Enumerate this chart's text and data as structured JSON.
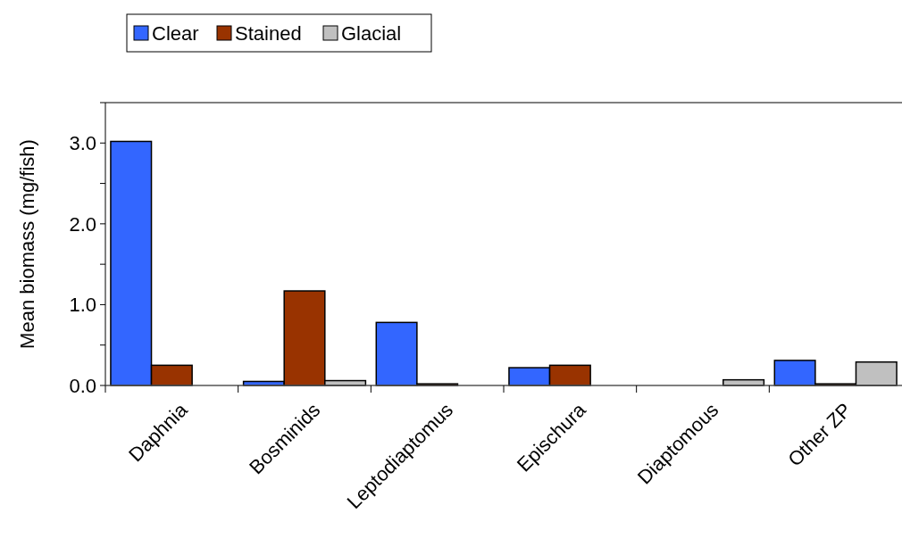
{
  "chart_data": {
    "type": "bar",
    "ylabel": "Mean biomass  (mg/fish)",
    "categories": [
      "Daphnia",
      "Bosminids",
      "Leptodiaptomus",
      "Epischura",
      "Diaptomous",
      "Other ZP"
    ],
    "series": [
      {
        "name": "Clear",
        "color": "#3366ff",
        "values": [
          3.02,
          0.05,
          0.78,
          0.22,
          0,
          0.31
        ]
      },
      {
        "name": "Stained",
        "color": "#993300",
        "values": [
          0.25,
          1.17,
          0.02,
          0.25,
          0,
          0.02
        ]
      },
      {
        "name": "Glacial",
        "color": "#c0c0c0",
        "values": [
          0,
          0.06,
          0,
          0,
          0.07,
          0.29
        ]
      }
    ],
    "ylim": [
      0,
      3.5
    ],
    "yticks": [
      {
        "value": 0,
        "label": "0.0"
      },
      {
        "value": 0.5,
        "label": null
      },
      {
        "value": 1,
        "label": "1.0"
      },
      {
        "value": 1.5,
        "label": null
      },
      {
        "value": 2,
        "label": "2.0"
      },
      {
        "value": 2.5,
        "label": null
      },
      {
        "value": 3,
        "label": "3.0"
      },
      {
        "value": 3.5,
        "label": null
      }
    ],
    "grid": false,
    "legend": "top left"
  }
}
